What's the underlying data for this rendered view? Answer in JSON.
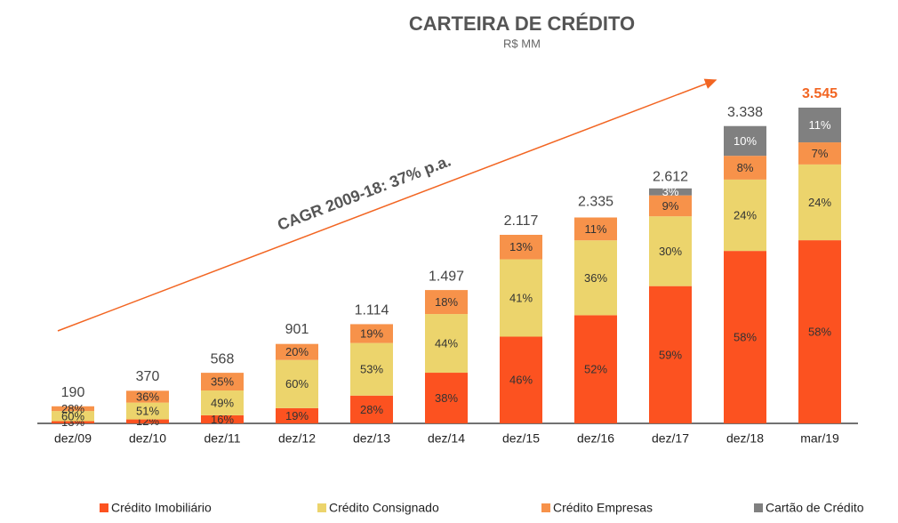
{
  "chart_data": {
    "type": "stacked_bar",
    "title": "CARTEIRA DE CRÉDITO",
    "subtitle": "R$ MM",
    "annotation": "CAGR 2009-18: 37% p.a.",
    "categories": [
      "dez/09",
      "dez/10",
      "dez/11",
      "dez/12",
      "dez/13",
      "dez/14",
      "dez/15",
      "dez/16",
      "dez/17",
      "dez/18",
      "mar/19"
    ],
    "totals": {
      "values": [
        190,
        370,
        568,
        901,
        1114,
        1497,
        2117,
        2335,
        2612,
        3338,
        3545
      ],
      "value_labels": [
        "190",
        "370",
        "568",
        "901",
        "1.114",
        "1.497",
        "2.117",
        "2.335",
        "2.612",
        "3.338",
        "3.545"
      ]
    },
    "series": [
      {
        "name": "Crédito Imobiliário",
        "color": "#fc5220",
        "values": [
          13,
          12,
          16,
          19,
          28,
          38,
          46,
          52,
          59,
          58,
          58
        ],
        "value_labels": [
          "13%",
          "12%",
          "16%",
          "19%",
          "28%",
          "38%",
          "46%",
          "52%",
          "59%",
          "58%",
          "58%"
        ]
      },
      {
        "name": "Crédito Consignado",
        "color": "#ecd46c",
        "values": [
          60,
          51,
          49,
          60,
          53,
          44,
          41,
          36,
          30,
          24,
          24
        ],
        "value_labels": [
          "60%",
          "51%",
          "49%",
          "60%",
          "53%",
          "44%",
          "41%",
          "36%",
          "30%",
          "24%",
          "24%"
        ]
      },
      {
        "name": "Crédito Empresas",
        "color": "#f7924a",
        "values": [
          28,
          36,
          35,
          20,
          19,
          18,
          13,
          11,
          9,
          8,
          7
        ],
        "value_labels": [
          "28%",
          "36%",
          "35%",
          "20%",
          "19%",
          "18%",
          "13%",
          "11%",
          "9%",
          "8%",
          "7%"
        ]
      },
      {
        "name": "Cartão de Crédito",
        "color": "#808080",
        "values": [
          null,
          null,
          null,
          null,
          null,
          null,
          null,
          null,
          3,
          10,
          11
        ],
        "value_labels": [
          null,
          null,
          null,
          null,
          null,
          null,
          null,
          null,
          "3%",
          "10%",
          "11%"
        ]
      }
    ]
  }
}
